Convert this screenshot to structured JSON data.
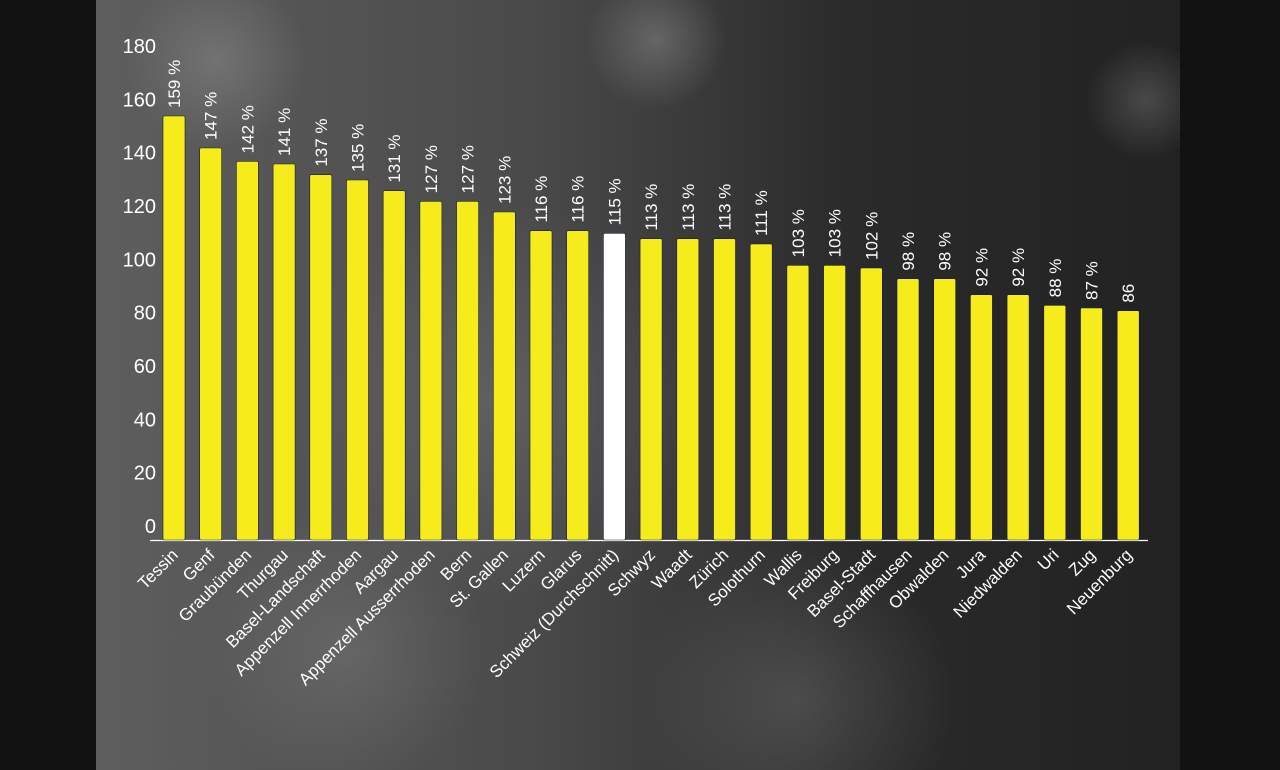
{
  "chart_data": {
    "type": "bar",
    "title": "",
    "xlabel": "",
    "ylabel": "",
    "ylim": [
      0,
      180
    ],
    "yticks": [
      0,
      20,
      40,
      60,
      80,
      100,
      120,
      140,
      160,
      180
    ],
    "grid": false,
    "categories": [
      "Tessin",
      "Genf",
      "Graubünden",
      "Thurgau",
      "Basel-Landschaft",
      "Appenzell Innerrhoden",
      "Aargau",
      "Appenzell Ausserrhoden",
      "Bern",
      "St. Gallen",
      "Luzern",
      "Glarus",
      "Schweiz (Durchschnitt)",
      "Schwyz",
      "Waadt",
      "Zürich",
      "Solothurn",
      "Wallis",
      "Freiburg",
      "Basel-Stadt",
      "Schaffhausen",
      "Obwalden",
      "Jura",
      "Niedwalden",
      "Uri",
      "Zug",
      "Neuenburg"
    ],
    "values": [
      159,
      147,
      142,
      141,
      137,
      135,
      131,
      127,
      127,
      123,
      116,
      116,
      115,
      113,
      113,
      113,
      111,
      103,
      103,
      102,
      98,
      98,
      92,
      92,
      88,
      87,
      86
    ],
    "data_labels": [
      "159 %",
      "147 %",
      "142 %",
      "141 %",
      "137 %",
      "135 %",
      "131 %",
      "127 %",
      "127 %",
      "123 %",
      "116 %",
      "116 %",
      "115 %",
      "113 %",
      "113 %",
      "113 %",
      "111 %",
      "103 %",
      "103 %",
      "102 %",
      "98 %",
      "98 %",
      "92 %",
      "92 %",
      "88 %",
      "87 %",
      "86"
    ],
    "highlight_category": "Schweiz (Durchschnitt)",
    "colors": {
      "bar": "#f7ec1b",
      "highlight": "#ffffff",
      "text": "#ffffff",
      "axis": "#ffffff"
    }
  }
}
